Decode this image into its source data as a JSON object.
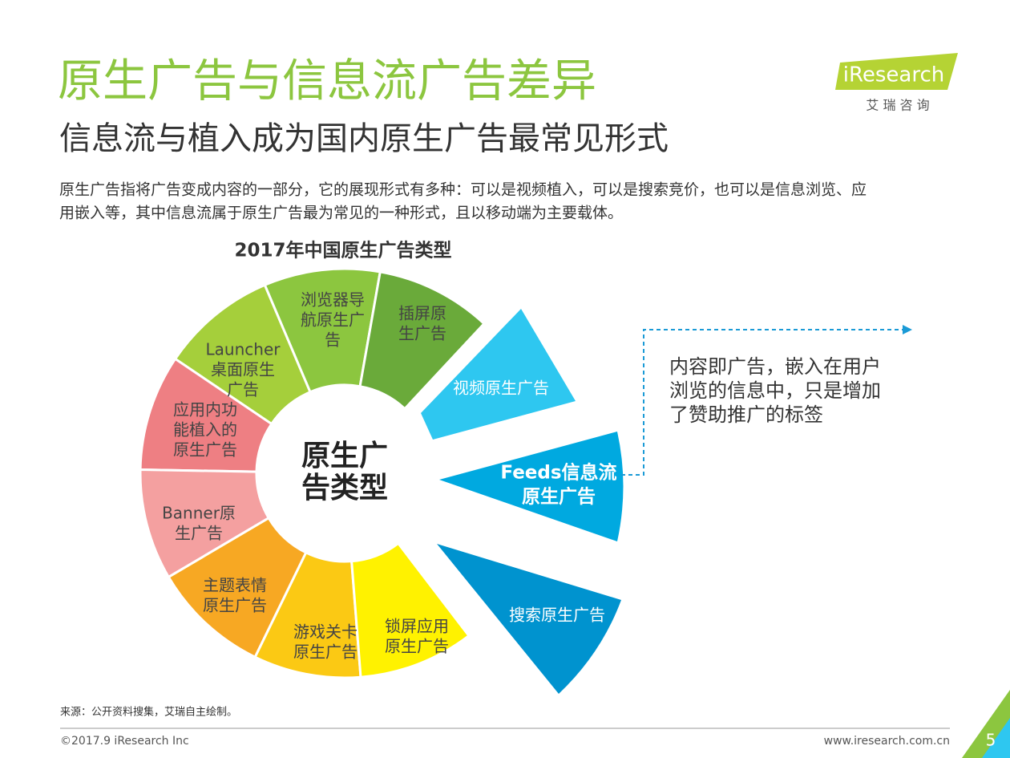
{
  "header": {
    "title": "原生广告与信息流广告差异",
    "subtitle": "信息流与植入成为国内原生广告最常见形式",
    "description": [
      "原生广告指将广告变成内容的一部分，它的展现形式有多种：可以是视频植入，可以是搜索竞价，也可以是信息浏览、应",
      "用嵌入等，其中信息流属于原生广告最为常见的一种形式，且以移动端为主要载体。"
    ]
  },
  "logo": {
    "brand": "iResearch",
    "tagline": "艾 瑞 咨 询"
  },
  "diagram": {
    "title": "2017年中国原生广告类型",
    "center": [
      "原生广",
      "告类型"
    ],
    "segments": [
      {
        "label": [
          "Launcher",
          "桌面原生",
          "广告"
        ]
      },
      {
        "label": [
          "浏览器导",
          "航原生广",
          "告"
        ]
      },
      {
        "label": [
          "插屏原",
          "生广告"
        ]
      },
      {
        "label": [
          "应用内功",
          "能植入的",
          "原生广告"
        ]
      },
      {
        "label": [
          "Banner原",
          "生广告"
        ]
      },
      {
        "label": [
          "主题表情",
          "原生广告"
        ]
      },
      {
        "label": [
          "游戏关卡",
          "原生广告"
        ]
      },
      {
        "label": [
          "锁屏应用",
          "原生广告"
        ]
      }
    ],
    "highlights": [
      {
        "label": [
          "视频原生广告"
        ]
      },
      {
        "label": [
          "Feeds信息流",
          "原生广告"
        ]
      },
      {
        "label": [
          "搜索原生广告"
        ]
      }
    ],
    "callout": [
      "内容即广告，嵌入在用户",
      "浏览的信息中，只是增加",
      "了赞助推广的标签"
    ]
  },
  "footer": {
    "source": "来源：公开资料搜集，艾瑞自主绘制。",
    "copyright": "©2017.9 iResearch Inc",
    "website": "www.iresearch.com.cn",
    "page": "5"
  }
}
